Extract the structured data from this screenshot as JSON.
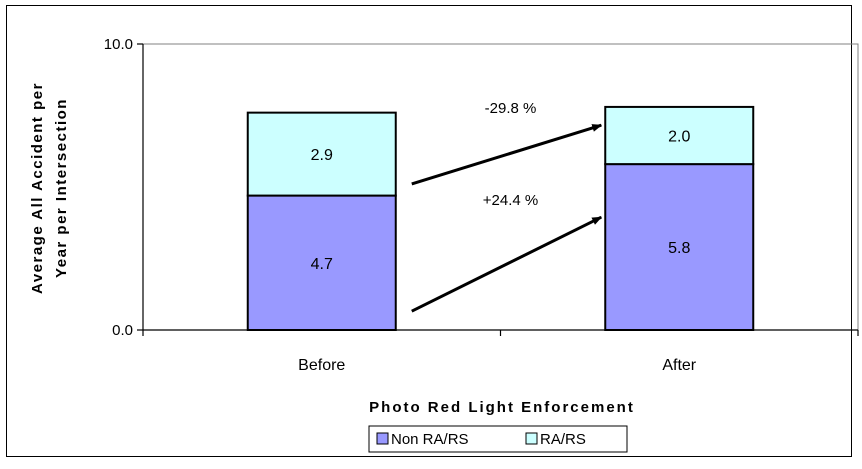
{
  "chart_data": {
    "type": "bar",
    "stacked": true,
    "categories": [
      "Before",
      "After"
    ],
    "series": [
      {
        "name": "Non RA/RS",
        "values": [
          4.7,
          5.8
        ],
        "color": "#9999ff",
        "data_labels": [
          "4.7",
          "5.8"
        ]
      },
      {
        "name": "RA/RS",
        "values": [
          2.9,
          2.0
        ],
        "color": "#ccffff",
        "data_labels": [
          "2.9",
          "2.0"
        ]
      }
    ],
    "ylabel_lines": [
      "Average All Accident per",
      "Year per Intersection"
    ],
    "xlabel": "Photo Red Light Enforcement",
    "ylim": [
      0,
      10
    ],
    "yticks": [
      "0.0",
      "10.0"
    ],
    "legend_position": "bottom",
    "grid": false,
    "annotations": [
      {
        "text": "-29.8 %",
        "series": "RA/RS"
      },
      {
        "text": "+24.4 %",
        "series": "Non RA/RS"
      }
    ]
  }
}
